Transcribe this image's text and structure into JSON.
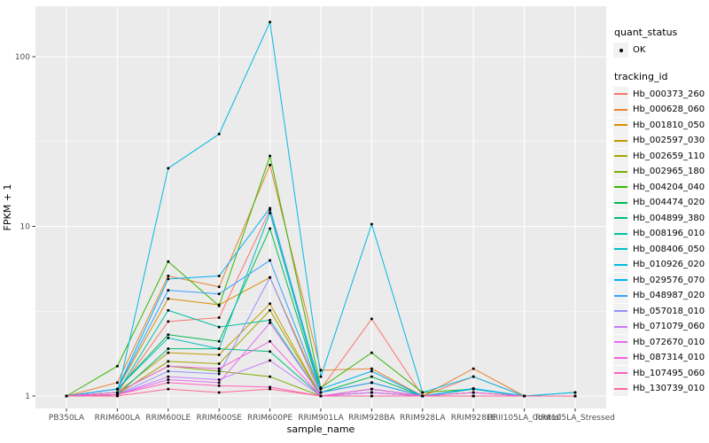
{
  "legend": {
    "quant_title": "quant_status",
    "ok_label": "OK",
    "tracking_title": "tracking_id"
  },
  "theme": {
    "panel_bg": "#EBEBEB",
    "grid_color": "#FFFFFF",
    "axis_text_color": "#4D4D4D",
    "text_color": "#000000",
    "legend_key_bg": "#F2F2F2",
    "point_color": "#000000"
  },
  "chart_data": {
    "type": "line",
    "xlabel": "sample_name",
    "ylabel": "FPKM + 1",
    "yscale": "log10",
    "ylim": [
      1,
      200
    ],
    "yticks": [
      1,
      10,
      100
    ],
    "ytick_labels": [
      "1",
      "10",
      "100"
    ],
    "grid": true,
    "legend_position": "right",
    "point_marker_label": "OK",
    "categories": [
      "PB350LA",
      "RRIM600LA",
      "RRIM600LE",
      "RRIM600SE",
      "RRIM600PE",
      "RRIM901LA",
      "RRIM928BA",
      "RRIM928LA",
      "RRIM928LE",
      "RRII105LA_Control",
      "RRII105LA_Stressed"
    ],
    "series": [
      {
        "name": "Hb_000373_260",
        "color": "#F8766D",
        "values": [
          1.0,
          1.05,
          2.75,
          2.9,
          12.5,
          1.1,
          2.85,
          1.0,
          1.3,
          1.0,
          1.0
        ]
      },
      {
        "name": "Hb_000628_060",
        "color": "#EA8331",
        "values": [
          1.0,
          1.2,
          5.1,
          4.4,
          23,
          1.42,
          1.45,
          1.0,
          1.45,
          1.0,
          1.0
        ]
      },
      {
        "name": "Hb_001810_050",
        "color": "#D89000",
        "values": [
          1.0,
          1.1,
          3.75,
          3.45,
          5.0,
          1.05,
          1.2,
          1.0,
          1.1,
          1.0,
          1.0
        ]
      },
      {
        "name": "Hb_002597_030",
        "color": "#C09B00",
        "values": [
          1.0,
          1.05,
          1.8,
          1.75,
          3.5,
          1.0,
          1.1,
          1.0,
          1.05,
          1.0,
          1.0
        ]
      },
      {
        "name": "Hb_002659_110",
        "color": "#A3A500",
        "values": [
          1.0,
          1.02,
          1.6,
          1.55,
          3.2,
          1.0,
          1.05,
          1.0,
          1.0,
          1.0,
          1.0
        ]
      },
      {
        "name": "Hb_002965_180",
        "color": "#7CAE00",
        "values": [
          1.0,
          1.05,
          1.5,
          1.4,
          1.3,
          1.0,
          1.0,
          1.0,
          1.0,
          1.0,
          1.0
        ]
      },
      {
        "name": "Hb_004204_040",
        "color": "#39B600",
        "values": [
          1.0,
          1.5,
          6.2,
          3.4,
          26,
          1.12,
          1.8,
          1.05,
          1.1,
          1.0,
          1.0
        ]
      },
      {
        "name": "Hb_004474_020",
        "color": "#00BB4E",
        "values": [
          1.0,
          1.1,
          2.3,
          2.1,
          9.7,
          1.05,
          1.3,
          1.0,
          1.1,
          1.0,
          1.0
        ]
      },
      {
        "name": "Hb_004899_380",
        "color": "#00BF7D",
        "values": [
          1.0,
          1.02,
          1.9,
          1.9,
          1.83,
          1.0,
          1.1,
          1.0,
          1.0,
          1.0,
          1.0
        ]
      },
      {
        "name": "Hb_008196_010",
        "color": "#00C1A3",
        "values": [
          1.0,
          1.05,
          3.2,
          2.55,
          2.8,
          1.0,
          1.05,
          1.0,
          1.0,
          1.0,
          1.0
        ]
      },
      {
        "name": "Hb_008406_050",
        "color": "#00BFC4",
        "values": [
          1.0,
          1.1,
          2.2,
          1.9,
          12.0,
          1.05,
          1.2,
          1.0,
          1.1,
          1.0,
          1.05
        ]
      },
      {
        "name": "Hb_010926_020",
        "color": "#00BAE0",
        "values": [
          1.0,
          1.02,
          22,
          35,
          160,
          1.3,
          10.3,
          1.05,
          1.3,
          1.0,
          1.05
        ]
      },
      {
        "name": "Hb_029576_070",
        "color": "#00B0F6",
        "values": [
          1.0,
          1.1,
          4.9,
          5.1,
          12.8,
          1.1,
          1.4,
          1.0,
          1.11,
          1.0,
          1.0
        ]
      },
      {
        "name": "Hb_048987_020",
        "color": "#35A2FF",
        "values": [
          1.0,
          1.1,
          4.2,
          4.0,
          6.3,
          1.05,
          1.2,
          1.0,
          1.05,
          1.0,
          1.0
        ]
      },
      {
        "name": "Hb_057018_010",
        "color": "#9590FF",
        "values": [
          1.0,
          1.02,
          1.4,
          1.35,
          5.0,
          1.0,
          1.1,
          1.0,
          1.0,
          1.0,
          1.0
        ]
      },
      {
        "name": "Hb_071079_060",
        "color": "#C77CFF",
        "values": [
          1.0,
          1.02,
          1.3,
          1.25,
          1.62,
          1.0,
          1.05,
          1.0,
          1.0,
          1.0,
          1.0
        ]
      },
      {
        "name": "Hb_072670_010",
        "color": "#E76BF3",
        "values": [
          1.0,
          1.02,
          1.25,
          1.2,
          2.7,
          1.0,
          1.05,
          1.0,
          1.0,
          1.0,
          1.0
        ]
      },
      {
        "name": "Hb_087314_010",
        "color": "#FA62DB",
        "values": [
          1.0,
          1.05,
          1.5,
          1.45,
          2.1,
          1.0,
          1.1,
          1.0,
          1.05,
          1.0,
          1.0
        ]
      },
      {
        "name": "Hb_107495_060",
        "color": "#FF62BC",
        "values": [
          1.0,
          1.02,
          1.2,
          1.15,
          1.13,
          1.0,
          1.0,
          1.0,
          1.0,
          1.0,
          1.0
        ]
      },
      {
        "name": "Hb_130739_010",
        "color": "#FF6A98",
        "values": [
          1.0,
          1.0,
          1.1,
          1.05,
          1.1,
          1.0,
          1.0,
          1.0,
          1.0,
          1.0,
          1.0
        ]
      }
    ]
  }
}
